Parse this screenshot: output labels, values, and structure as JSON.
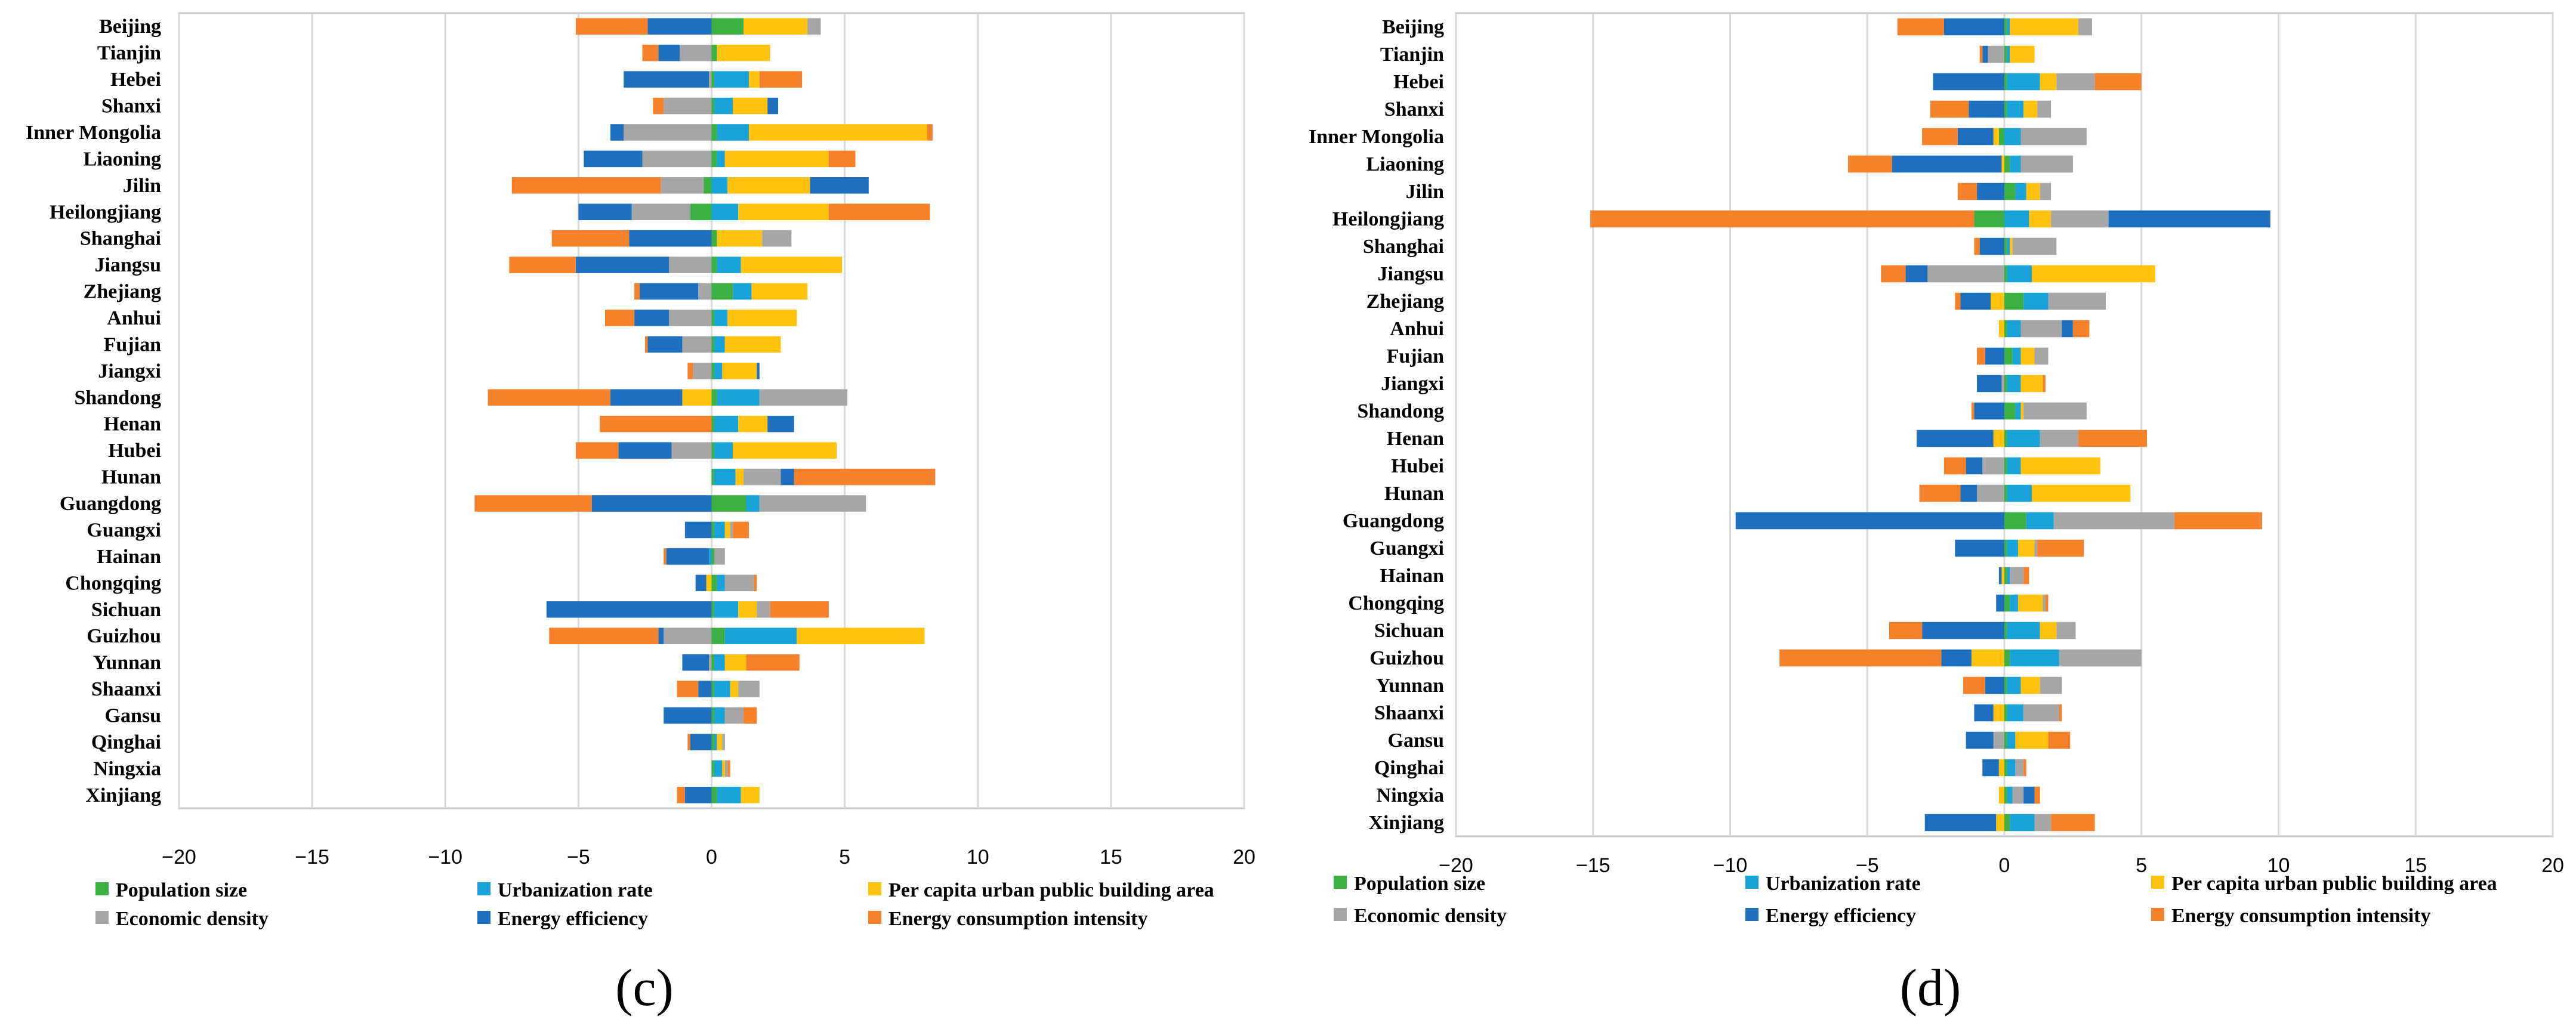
{
  "series_meta": [
    {
      "name": "Population size",
      "color": "#3cb043"
    },
    {
      "name": "Urbanization rate",
      "color": "#1aa3d9"
    },
    {
      "name": "Per capita urban public building area",
      "color": "#ffc20e"
    },
    {
      "name": "Economic density",
      "color": "#a6a6a6"
    },
    {
      "name": "Energy efficiency",
      "color": "#1f6fbf"
    },
    {
      "name": "Energy consumption intensity",
      "color": "#f5822a"
    }
  ],
  "chart_data": [
    {
      "type": "bar",
      "orientation": "horizontal",
      "stacked": "diverging",
      "panel_label": "(c)",
      "xlim": [
        -20,
        20
      ],
      "xticks": [
        -20,
        -15,
        -10,
        -5,
        0,
        5,
        10,
        15,
        20
      ],
      "xtick_labels": [
        "−20",
        "−15",
        "−10",
        "−5",
        "0",
        "5",
        "10",
        "15",
        "20"
      ],
      "categories": [
        "Beijing",
        "Tianjin",
        "Hebei",
        "Shanxi",
        "Inner Mongolia",
        "Liaoning",
        "Jilin",
        "Heilongjiang",
        "Shanghai",
        "Jiangsu",
        "Zhejiang",
        "Anhui",
        "Fujian",
        "Jiangxi",
        "Shandong",
        "Henan",
        "Hubei",
        "Hunan",
        "Guangdong",
        "Guangxi",
        "Hainan",
        "Chongqing",
        "Sichuan",
        "Guizhou",
        "Yunnan",
        "Shaanxi",
        "Gansu",
        "Qinghai",
        "Ningxia",
        "Xinjiang"
      ],
      "series": [
        {
          "name": "Population size",
          "values": [
            1.2,
            0.2,
            0.1,
            0.1,
            0.2,
            0.2,
            -0.3,
            -0.8,
            0.2,
            0.2,
            0.8,
            0.1,
            0.1,
            0.1,
            0.2,
            0.1,
            0.1,
            0.1,
            1.3,
            0.1,
            0.1,
            0.2,
            0.1,
            0.5,
            0.1,
            0.1,
            0.1,
            0.1,
            0.1,
            0.2
          ]
        },
        {
          "name": "Urbanization rate",
          "values": [
            0.0,
            0.0,
            1.3,
            0.7,
            1.2,
            0.3,
            0.6,
            1.0,
            0.0,
            0.9,
            0.7,
            0.5,
            0.4,
            0.3,
            1.6,
            0.9,
            0.7,
            0.8,
            0.5,
            0.4,
            -0.1,
            0.3,
            0.9,
            2.7,
            0.4,
            0.6,
            0.4,
            0.1,
            0.3,
            0.9
          ]
        },
        {
          "name": "Per capita urban public building area",
          "values": [
            2.4,
            2.0,
            0.4,
            1.3,
            6.7,
            3.9,
            3.1,
            3.4,
            1.7,
            3.8,
            2.1,
            2.6,
            2.1,
            1.3,
            -1.1,
            1.1,
            3.9,
            0.3,
            0.0,
            0.2,
            0.0,
            -0.2,
            0.7,
            4.8,
            0.8,
            0.3,
            0.0,
            0.2,
            0.1,
            0.7
          ]
        },
        {
          "name": "Economic density",
          "values": [
            0.5,
            -1.2,
            -0.1,
            -1.8,
            -3.3,
            -2.6,
            -1.6,
            -2.2,
            1.1,
            -1.6,
            -0.5,
            -1.6,
            -1.1,
            -0.7,
            3.3,
            0.0,
            -1.5,
            1.4,
            4.0,
            0.1,
            0.4,
            1.1,
            0.5,
            -1.8,
            -0.1,
            0.8,
            0.7,
            0.1,
            0.1,
            0.0
          ]
        },
        {
          "name": "Energy efficiency",
          "values": [
            -2.4,
            -0.8,
            -3.2,
            0.4,
            -0.5,
            -2.2,
            2.2,
            -2.0,
            -3.1,
            -3.5,
            -2.2,
            -1.3,
            -1.3,
            0.1,
            -2.7,
            1.0,
            -2.0,
            0.5,
            -4.5,
            -1.0,
            -1.6,
            -0.4,
            -6.2,
            -0.2,
            -1.0,
            -0.5,
            -1.8,
            -0.8,
            0.0,
            -1.0
          ]
        },
        {
          "name": "Energy consumption intensity",
          "values": [
            -2.7,
            -0.6,
            1.6,
            -0.4,
            0.2,
            1.0,
            -5.6,
            3.8,
            -2.9,
            -2.5,
            -0.2,
            -1.1,
            -0.1,
            -0.2,
            -4.6,
            -4.2,
            -1.6,
            5.3,
            -4.4,
            0.6,
            -0.1,
            0.1,
            2.2,
            -4.1,
            2.0,
            -0.8,
            0.5,
            -0.1,
            0.1,
            -0.3
          ]
        }
      ]
    },
    {
      "type": "bar",
      "orientation": "horizontal",
      "stacked": "diverging",
      "panel_label": "(d)",
      "xlim": [
        -20,
        20
      ],
      "xticks": [
        -20,
        -15,
        -10,
        -5,
        0,
        5,
        10,
        15,
        20
      ],
      "xtick_labels": [
        "−20",
        "−15",
        "−10",
        "−5",
        "0",
        "5",
        "10",
        "15",
        "20"
      ],
      "categories": [
        "Beijing",
        "Tianjin",
        "Hebei",
        "Shanxi",
        "Inner Mongolia",
        "Liaoning",
        "Jilin",
        "Heilongjiang",
        "Shanghai",
        "Jiangsu",
        "Zhejiang",
        "Anhui",
        "Fujian",
        "Jiangxi",
        "Shandong",
        "Henan",
        "Hubei",
        "Hunan",
        "Guangdong",
        "Guangxi",
        "Hainan",
        "Chongqing",
        "Sichuan",
        "Guizhou",
        "Yunnan",
        "Shaanxi",
        "Gansu",
        "Qinghai",
        "Ningxia",
        "Xinjiang"
      ],
      "series": [
        {
          "name": "Population size",
          "values": [
            0.1,
            0.1,
            0.1,
            0.1,
            -0.2,
            0.2,
            0.4,
            -1.1,
            0.1,
            0.1,
            0.7,
            0.1,
            0.3,
            0.1,
            0.4,
            0.1,
            0.1,
            0.1,
            0.8,
            0.1,
            0.1,
            0.2,
            0.1,
            0.2,
            0.1,
            0.1,
            0.1,
            0.1,
            0.1,
            0.2
          ]
        },
        {
          "name": "Urbanization rate",
          "values": [
            0.1,
            0.1,
            1.2,
            0.6,
            0.6,
            0.4,
            0.4,
            0.9,
            0.1,
            0.9,
            0.9,
            0.5,
            0.3,
            0.5,
            0.2,
            1.2,
            0.5,
            0.9,
            1.0,
            0.4,
            0.1,
            0.3,
            1.2,
            1.8,
            0.5,
            0.6,
            0.3,
            0.3,
            0.2,
            0.9
          ]
        },
        {
          "name": "Per capita urban public building area",
          "values": [
            2.5,
            0.9,
            0.6,
            0.5,
            -0.2,
            -0.1,
            0.5,
            0.8,
            0.1,
            4.5,
            -0.5,
            -0.2,
            0.5,
            0.8,
            0.1,
            -0.4,
            2.9,
            3.6,
            0.0,
            0.6,
            -0.1,
            0.9,
            0.6,
            -1.2,
            0.7,
            -0.4,
            1.2,
            -0.2,
            -0.2,
            -0.3
          ]
        },
        {
          "name": "Economic density",
          "values": [
            0.5,
            -0.6,
            1.4,
            0.5,
            2.4,
            1.9,
            0.4,
            2.1,
            1.6,
            -2.8,
            2.1,
            1.5,
            0.5,
            -0.1,
            2.3,
            1.4,
            -0.8,
            -1.0,
            4.4,
            0.1,
            0.5,
            0.1,
            0.7,
            3.0,
            0.8,
            1.3,
            -0.4,
            0.3,
            0.4,
            0.6
          ]
        },
        {
          "name": "Energy efficiency",
          "values": [
            -2.2,
            -0.2,
            -2.6,
            -1.3,
            -1.3,
            -4.0,
            -1.0,
            5.9,
            -0.9,
            -0.8,
            -1.1,
            0.4,
            -0.7,
            -0.9,
            -1.1,
            -2.8,
            -0.6,
            -0.6,
            -9.8,
            -1.8,
            -0.1,
            -0.3,
            -3.0,
            -1.1,
            -0.7,
            -0.7,
            -1.0,
            -0.6,
            0.4,
            -2.6
          ]
        },
        {
          "name": "Energy consumption intensity",
          "values": [
            -1.7,
            -0.1,
            1.7,
            -1.4,
            -1.3,
            -1.6,
            -0.7,
            -14.0,
            -0.2,
            -0.9,
            -0.2,
            0.6,
            -0.3,
            0.1,
            -0.1,
            2.5,
            -0.8,
            -1.5,
            3.2,
            1.7,
            0.2,
            0.1,
            -1.2,
            -5.9,
            -0.8,
            0.1,
            0.8,
            0.1,
            0.2,
            1.6
          ]
        }
      ]
    }
  ]
}
